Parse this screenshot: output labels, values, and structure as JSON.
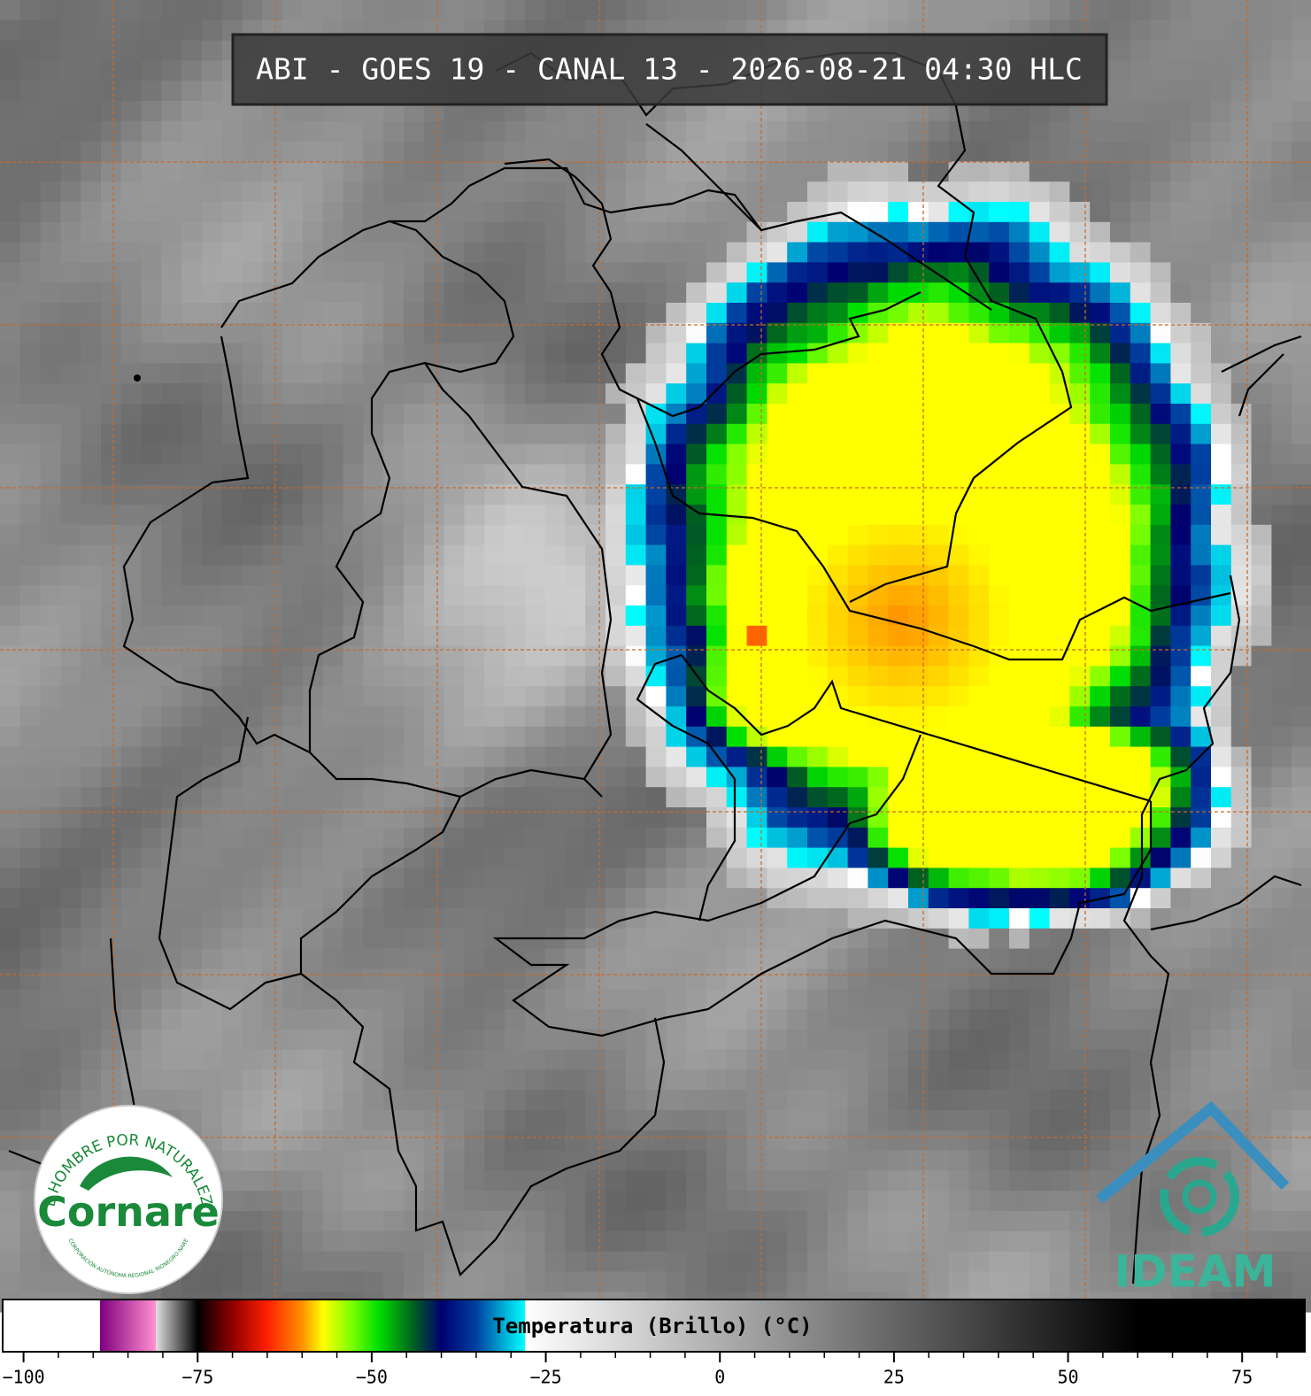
{
  "map": {
    "title": "ABI - GOES 19 - CANAL 13 - 2026-08-21 04:30 HLC",
    "logos": {
      "cornare": {
        "motto": "EL HOMBRE POR NATURALEZA",
        "name": "Cornare",
        "subtitle": "CORPORACIÓN AUTÓNOMA REGIONAL RIONEGRO-NARE"
      },
      "ideam": {
        "name": "IDEAM"
      }
    },
    "colorbar": {
      "label": "Temperatura (Brillo) (°C)",
      "range": [
        -103,
        84
      ],
      "ticks": [
        {
          "value": -100,
          "label": "−100"
        },
        {
          "value": -75,
          "label": "−75"
        },
        {
          "value": -50,
          "label": "−50"
        },
        {
          "value": -25,
          "label": "−25"
        },
        0,
        25,
        50,
        75
      ],
      "minor_ticks": [
        -95,
        -90,
        -85,
        -80,
        -70,
        -65,
        -60,
        -55,
        -45,
        -40,
        -35,
        -30,
        -20,
        -15,
        -10,
        -5,
        5,
        10,
        15,
        20,
        30,
        35,
        40,
        45,
        55,
        60,
        65,
        70,
        80
      ],
      "stops": [
        {
          "value": -103,
          "color": "#ffffff"
        },
        {
          "value": -89,
          "color": "#ffffff"
        },
        {
          "value": -89,
          "color": "#800080"
        },
        {
          "value": -81,
          "color": "#ff90d0"
        },
        {
          "value": -81,
          "color": "#e0e0e0"
        },
        {
          "value": -75,
          "color": "#000000"
        },
        {
          "value": -70,
          "color": "#900000"
        },
        {
          "value": -65,
          "color": "#ff2000"
        },
        {
          "value": -60,
          "color": "#ff9000"
        },
        {
          "value": -57,
          "color": "#ffff00"
        },
        {
          "value": -53,
          "color": "#80ff00"
        },
        {
          "value": -49,
          "color": "#00e000"
        },
        {
          "value": -44,
          "color": "#006020"
        },
        {
          "value": -40,
          "color": "#000070"
        },
        {
          "value": -35,
          "color": "#0040a0"
        },
        {
          "value": -28,
          "color": "#00ffff"
        },
        {
          "value": -28,
          "color": "#ffffff"
        },
        {
          "value": 60,
          "color": "#000000"
        },
        {
          "value": 84,
          "color": "#000000"
        }
      ]
    }
  }
}
